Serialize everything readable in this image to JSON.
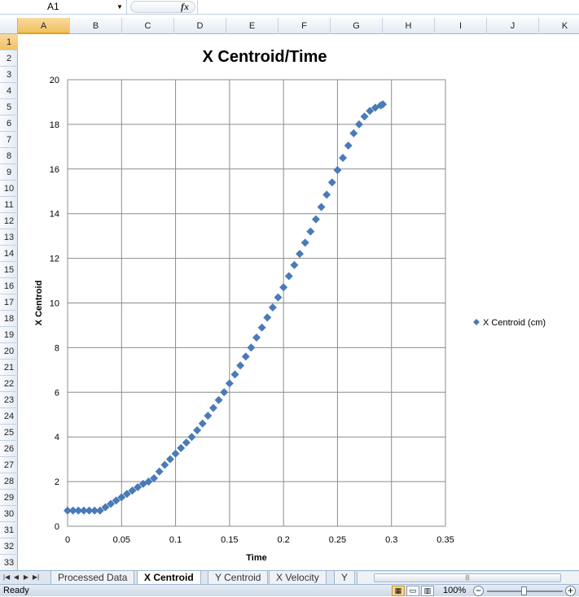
{
  "formula_bar": {
    "name_box": "A1",
    "fx_label": "fx",
    "formula": ""
  },
  "columns": [
    "A",
    "B",
    "C",
    "D",
    "E",
    "F",
    "G",
    "H",
    "I",
    "J",
    "K"
  ],
  "rows": [
    "1",
    "2",
    "3",
    "4",
    "5",
    "6",
    "7",
    "8",
    "9",
    "10",
    "11",
    "12",
    "13",
    "14",
    "15",
    "16",
    "17",
    "18",
    "19",
    "20",
    "21",
    "22",
    "23",
    "24",
    "25",
    "26",
    "27",
    "28",
    "29",
    "30",
    "31",
    "32",
    "33"
  ],
  "active_cell": "A1",
  "sheet_tabs": [
    "Processed Data",
    "X Centroid",
    "Y Centroid",
    "X Velocity",
    "Y"
  ],
  "active_tab": "X Centroid",
  "status": {
    "text": "Ready",
    "zoom": "100%"
  },
  "colors": {
    "series": "#4a7ab8",
    "accent": "#f1c15f"
  },
  "chart_data": {
    "type": "scatter",
    "title": "X Centroid/Time",
    "xlabel": "Time",
    "ylabel": "X Centroid",
    "xlim": [
      0,
      0.35
    ],
    "ylim": [
      0,
      20
    ],
    "xticks": [
      "0",
      "0.05",
      "0.1",
      "0.15",
      "0.2",
      "0.25",
      "0.3",
      "0.35"
    ],
    "yticks": [
      "0",
      "2",
      "4",
      "6",
      "8",
      "10",
      "12",
      "14",
      "16",
      "18",
      "20"
    ],
    "grid": true,
    "legend": "right",
    "marker": "diamond",
    "series": [
      {
        "name": "X Centroid (cm)",
        "x": [
          0,
          0.005,
          0.01,
          0.015,
          0.02,
          0.025,
          0.03,
          0.035,
          0.04,
          0.045,
          0.05,
          0.055,
          0.06,
          0.065,
          0.07,
          0.075,
          0.08,
          0.085,
          0.09,
          0.095,
          0.1,
          0.105,
          0.11,
          0.115,
          0.12,
          0.125,
          0.13,
          0.135,
          0.14,
          0.145,
          0.15,
          0.155,
          0.16,
          0.165,
          0.17,
          0.175,
          0.18,
          0.185,
          0.19,
          0.195,
          0.2,
          0.205,
          0.21,
          0.215,
          0.22,
          0.225,
          0.23,
          0.235,
          0.24,
          0.245,
          0.25,
          0.255,
          0.26,
          0.265,
          0.27,
          0.275,
          0.28,
          0.285,
          0.29,
          0.292
        ],
        "y": [
          0.7,
          0.7,
          0.7,
          0.7,
          0.7,
          0.7,
          0.7,
          0.85,
          1.0,
          1.15,
          1.3,
          1.45,
          1.6,
          1.75,
          1.9,
          2.0,
          2.15,
          2.45,
          2.75,
          3.0,
          3.25,
          3.5,
          3.75,
          4.0,
          4.3,
          4.6,
          4.95,
          5.3,
          5.65,
          6.0,
          6.4,
          6.8,
          7.2,
          7.6,
          8.0,
          8.45,
          8.9,
          9.35,
          9.8,
          10.25,
          10.7,
          11.2,
          11.7,
          12.2,
          12.7,
          13.2,
          13.75,
          14.3,
          14.85,
          15.4,
          15.95,
          16.5,
          17.05,
          17.6,
          18.0,
          18.35,
          18.6,
          18.75,
          18.85,
          18.9
        ]
      }
    ]
  }
}
